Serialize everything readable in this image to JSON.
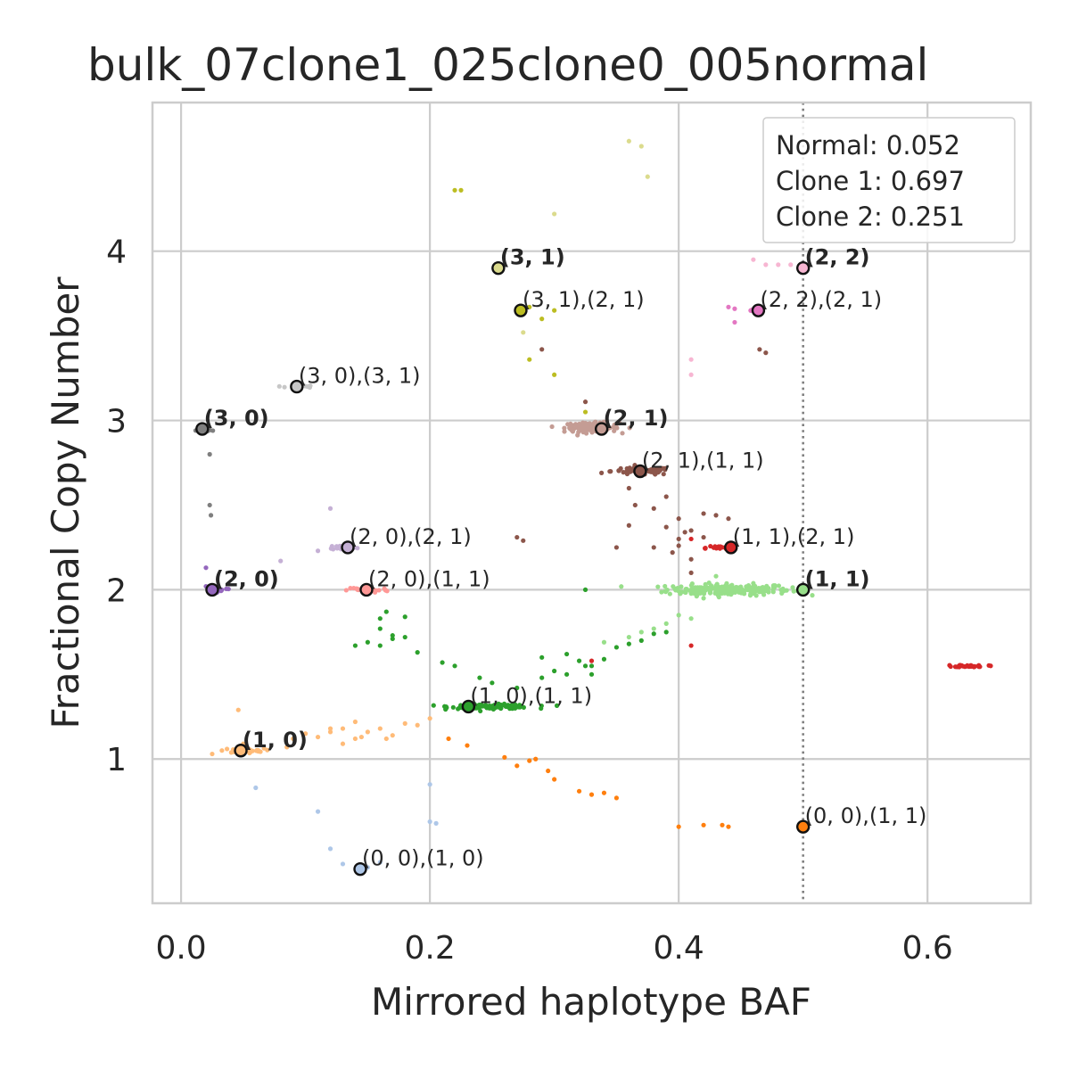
{
  "chart_data": {
    "type": "scatter",
    "title": "bulk_07clone1_025clone0_005normal",
    "xlabel": "Mirrored haplotype BAF",
    "ylabel": "Fractional Copy Number",
    "xlim": [
      -0.023,
      0.683
    ],
    "ylim": [
      0.148,
      4.878
    ],
    "xticks": [
      0.0,
      0.2,
      0.4,
      0.6
    ],
    "xtick_labels": [
      "0.0",
      "0.2",
      "0.4",
      "0.6"
    ],
    "yticks": [
      1,
      2,
      3,
      4
    ],
    "ytick_labels": [
      "1",
      "2",
      "3",
      "4"
    ],
    "grid": true,
    "reference_line": {
      "x": 0.5,
      "style": "dotted",
      "color": "#808080"
    },
    "legend": {
      "placement": "top-right",
      "entries": [
        "Normal: 0.052",
        "Clone 1: 0.697",
        "Clone 2: 0.251"
      ]
    },
    "clusters": [
      {
        "color": "#98df8a",
        "center": [
          0.44,
          2.0
        ],
        "spread": [
          0.045,
          0.03
        ],
        "n": 220
      },
      {
        "color": "#c49c94",
        "center": [
          0.33,
          2.96
        ],
        "spread": [
          0.02,
          0.025
        ],
        "n": 130
      },
      {
        "color": "#8c564b",
        "center": [
          0.37,
          2.7
        ],
        "spread": [
          0.022,
          0.02
        ],
        "n": 80
      },
      {
        "color": "#2ca02c",
        "center": [
          0.25,
          1.31
        ],
        "spread": [
          0.03,
          0.012
        ],
        "n": 120
      },
      {
        "color": "#ffbb78",
        "center": [
          0.05,
          1.05
        ],
        "spread": [
          0.015,
          0.012
        ],
        "n": 45
      },
      {
        "color": "#ff9896",
        "center": [
          0.15,
          2.0
        ],
        "spread": [
          0.015,
          0.015
        ],
        "n": 35
      },
      {
        "color": "#c5b0d5",
        "center": [
          0.13,
          2.25
        ],
        "spread": [
          0.01,
          0.012
        ],
        "n": 25
      },
      {
        "color": "#9467bd",
        "center": [
          0.03,
          2.0
        ],
        "spread": [
          0.01,
          0.01
        ],
        "n": 14
      },
      {
        "color": "#7f7f7f",
        "center": [
          0.02,
          2.94
        ],
        "spread": [
          0.008,
          0.01
        ],
        "n": 14
      },
      {
        "color": "#c7c7c7",
        "center": [
          0.095,
          3.2
        ],
        "spread": [
          0.01,
          0.01
        ],
        "n": 12
      },
      {
        "color": "#d62728",
        "center": [
          0.635,
          1.55
        ],
        "spread": [
          0.012,
          0.006
        ],
        "n": 30
      },
      {
        "color": "#d62728",
        "center": [
          0.43,
          2.25
        ],
        "spread": [
          0.015,
          0.01
        ],
        "n": 18
      },
      {
        "color": "#e377c2",
        "center": [
          0.46,
          3.65
        ],
        "spread": [
          0.006,
          0.01
        ],
        "n": 10
      }
    ],
    "scatter_points": [
      {
        "color": "#98df8a",
        "points": [
          [
            0.37,
            1.75
          ],
          [
            0.36,
            1.72
          ],
          [
            0.34,
            1.69
          ],
          [
            0.39,
            1.8
          ],
          [
            0.4,
            1.85
          ],
          [
            0.41,
            1.83
          ],
          [
            0.43,
            2.08
          ],
          [
            0.42,
            1.95
          ],
          [
            0.38,
            1.77
          ]
        ]
      },
      {
        "color": "#8c564b",
        "points": [
          [
            0.36,
            2.6
          ],
          [
            0.365,
            2.5
          ],
          [
            0.38,
            2.48
          ],
          [
            0.4,
            2.42
          ],
          [
            0.41,
            2.35
          ],
          [
            0.39,
            2.37
          ],
          [
            0.42,
            2.31
          ],
          [
            0.43,
            2.44
          ],
          [
            0.4,
            2.3
          ],
          [
            0.41,
            2.18
          ],
          [
            0.35,
            2.25
          ],
          [
            0.4,
            2.26
          ],
          [
            0.44,
            2.42
          ],
          [
            0.42,
            2.45
          ],
          [
            0.38,
            2.25
          ],
          [
            0.41,
            2.1
          ],
          [
            0.395,
            2.22
          ],
          [
            0.36,
            2.38
          ],
          [
            0.27,
            2.31
          ],
          [
            0.275,
            2.29
          ],
          [
            0.29,
            3.42
          ],
          [
            0.325,
            3.11
          ],
          [
            0.39,
            2.55
          ],
          [
            0.405,
            2.34
          ],
          [
            0.47,
            3.4
          ],
          [
            0.465,
            3.42
          ]
        ]
      },
      {
        "color": "#2ca02c",
        "points": [
          [
            0.17,
            1.71
          ],
          [
            0.16,
            1.67
          ],
          [
            0.14,
            1.67
          ],
          [
            0.15,
            1.69
          ],
          [
            0.17,
            1.73
          ],
          [
            0.18,
            1.72
          ],
          [
            0.19,
            1.63
          ],
          [
            0.21,
            1.57
          ],
          [
            0.22,
            1.55
          ],
          [
            0.24,
            1.48
          ],
          [
            0.25,
            1.45
          ],
          [
            0.27,
            1.42
          ],
          [
            0.29,
            1.48
          ],
          [
            0.31,
            1.5
          ],
          [
            0.3,
            1.52
          ],
          [
            0.32,
            1.58
          ],
          [
            0.33,
            1.55
          ],
          [
            0.34,
            1.59
          ],
          [
            0.29,
            1.6
          ],
          [
            0.31,
            1.62
          ],
          [
            0.35,
            1.66
          ],
          [
            0.36,
            1.68
          ],
          [
            0.33,
            1.5
          ],
          [
            0.325,
            1.55
          ],
          [
            0.37,
            1.7
          ],
          [
            0.38,
            1.74
          ],
          [
            0.39,
            1.75
          ],
          [
            0.325,
            2.0
          ],
          [
            0.165,
            1.87
          ],
          [
            0.16,
            1.77
          ],
          [
            0.16,
            1.83
          ],
          [
            0.18,
            1.84
          ]
        ]
      },
      {
        "color": "#ffbb78",
        "points": [
          [
            0.1,
            1.15
          ],
          [
            0.11,
            1.13
          ],
          [
            0.12,
            1.16
          ],
          [
            0.13,
            1.18
          ],
          [
            0.14,
            1.12
          ],
          [
            0.15,
            1.16
          ],
          [
            0.16,
            1.18
          ],
          [
            0.17,
            1.14
          ],
          [
            0.18,
            1.21
          ],
          [
            0.19,
            1.2
          ],
          [
            0.2,
            1.24
          ],
          [
            0.09,
            1.12
          ],
          [
            0.085,
            1.07
          ],
          [
            0.12,
            1.18
          ],
          [
            0.13,
            1.09
          ],
          [
            0.165,
            1.12
          ],
          [
            0.145,
            1.13
          ],
          [
            0.025,
            1.03
          ],
          [
            0.046,
            1.29
          ],
          [
            0.14,
            1.22
          ],
          [
            0.05,
            1.09
          ]
        ]
      },
      {
        "color": "#ff7f0e",
        "points": [
          [
            0.215,
            1.12
          ],
          [
            0.23,
            1.08
          ],
          [
            0.26,
            1.01
          ],
          [
            0.27,
            0.96
          ],
          [
            0.28,
            0.99
          ],
          [
            0.285,
            1.0
          ],
          [
            0.295,
            0.93
          ],
          [
            0.3,
            0.88
          ],
          [
            0.32,
            0.81
          ],
          [
            0.33,
            0.79
          ],
          [
            0.34,
            0.8
          ],
          [
            0.35,
            0.77
          ],
          [
            0.4,
            0.6
          ],
          [
            0.42,
            0.61
          ],
          [
            0.435,
            0.61
          ],
          [
            0.44,
            0.6
          ]
        ]
      },
      {
        "color": "#aec7e8",
        "points": [
          [
            0.06,
            0.83
          ],
          [
            0.11,
            0.69
          ],
          [
            0.12,
            0.47
          ],
          [
            0.13,
            0.38
          ],
          [
            0.15,
            0.36
          ],
          [
            0.16,
            0.39
          ],
          [
            0.2,
            0.63
          ],
          [
            0.205,
            0.62
          ],
          [
            0.2,
            0.85
          ]
        ]
      },
      {
        "color": "#bcbd22",
        "points": [
          [
            0.22,
            4.36
          ],
          [
            0.225,
            4.36
          ],
          [
            0.27,
            3.64
          ],
          [
            0.28,
            3.67
          ],
          [
            0.29,
            3.6
          ],
          [
            0.3,
            3.65
          ],
          [
            0.28,
            3.36
          ],
          [
            0.3,
            3.27
          ],
          [
            0.325,
            3.05
          ]
        ]
      },
      {
        "color": "#dbdb8d",
        "points": [
          [
            0.36,
            4.65
          ],
          [
            0.37,
            4.62
          ],
          [
            0.375,
            4.44
          ],
          [
            0.3,
            4.22
          ],
          [
            0.275,
            3.52
          ]
        ]
      },
      {
        "color": "#f7b6d2",
        "points": [
          [
            0.46,
            3.95
          ],
          [
            0.47,
            3.92
          ],
          [
            0.49,
            3.92
          ],
          [
            0.48,
            3.92
          ],
          [
            0.41,
            3.36
          ],
          [
            0.41,
            3.27
          ]
        ]
      },
      {
        "color": "#e377c2",
        "points": [
          [
            0.44,
            3.67
          ],
          [
            0.445,
            3.66
          ],
          [
            0.445,
            3.58
          ]
        ]
      },
      {
        "color": "#d62728",
        "points": [
          [
            0.33,
            1.58
          ],
          [
            0.41,
            1.67
          ],
          [
            0.41,
            2.3
          ]
        ]
      },
      {
        "color": "#7f7f7f",
        "points": [
          [
            0.023,
            2.8
          ],
          [
            0.023,
            2.5
          ],
          [
            0.024,
            2.44
          ]
        ]
      },
      {
        "color": "#c5b0d5",
        "points": [
          [
            0.12,
            2.48
          ],
          [
            0.08,
            2.17
          ],
          [
            0.11,
            2.23
          ]
        ]
      },
      {
        "color": "#9467bd",
        "points": [
          [
            0.02,
            2.13
          ],
          [
            0.02,
            2.02
          ]
        ]
      }
    ],
    "labeled_points": [
      {
        "label": "(1, 1)",
        "x": 0.5,
        "y": 2.0,
        "color": "#98df8a",
        "bold": true
      },
      {
        "label": "(2, 2)",
        "x": 0.5,
        "y": 3.9,
        "color": "#f7b6d2",
        "bold": true
      },
      {
        "label": "(3, 1)",
        "x": 0.255,
        "y": 3.9,
        "color": "#dbdb8d",
        "bold": true
      },
      {
        "label": "(2, 1)",
        "x": 0.338,
        "y": 2.95,
        "color": "#c49c94",
        "bold": true
      },
      {
        "label": "(3, 0)",
        "x": 0.017,
        "y": 2.95,
        "color": "#7f7f7f",
        "bold": true
      },
      {
        "label": "(2, 0)",
        "x": 0.025,
        "y": 2.0,
        "color": "#9467bd",
        "bold": true
      },
      {
        "label": "(1, 0)",
        "x": 0.048,
        "y": 1.05,
        "color": "#ffbb78",
        "bold": true
      },
      {
        "label": "(3, 1),(2, 1)",
        "x": 0.273,
        "y": 3.65,
        "color": "#bcbd22",
        "bold": false
      },
      {
        "label": "(2, 2),(2, 1)",
        "x": 0.464,
        "y": 3.65,
        "color": "#e377c2",
        "bold": false
      },
      {
        "label": "(3, 0),(3, 1)",
        "x": 0.093,
        "y": 3.2,
        "color": "#c7c7c7",
        "bold": false
      },
      {
        "label": "(2, 1),(1, 1)",
        "x": 0.369,
        "y": 2.7,
        "color": "#8c564b",
        "bold": false
      },
      {
        "label": "(2, 0),(2, 1)",
        "x": 0.134,
        "y": 2.25,
        "color": "#c5b0d5",
        "bold": false
      },
      {
        "label": "(1, 1),(2, 1)",
        "x": 0.442,
        "y": 2.25,
        "color": "#d62728",
        "bold": false
      },
      {
        "label": "(2, 0),(1, 1)",
        "x": 0.149,
        "y": 2.0,
        "color": "#ff9896",
        "bold": false
      },
      {
        "label": "(1, 0),(1, 1)",
        "x": 0.231,
        "y": 1.31,
        "color": "#2ca02c",
        "bold": false
      },
      {
        "label": "(0, 0),(1, 1)",
        "x": 0.5,
        "y": 0.6,
        "color": "#ff7f0e",
        "bold": false
      },
      {
        "label": "(0, 0),(1, 0)",
        "x": 0.144,
        "y": 0.35,
        "color": "#aec7e8",
        "bold": false
      }
    ]
  }
}
